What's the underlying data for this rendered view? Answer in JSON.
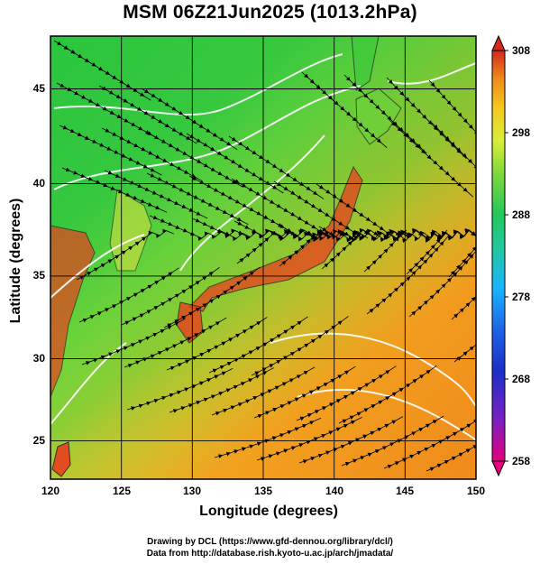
{
  "title": "MSM 06Z21Jun2025 (1013.2hPa)",
  "axes": {
    "xlabel": "Longitude (degrees)",
    "ylabel": "Latitude  (degrees)",
    "xticks": [
      "120",
      "125",
      "130",
      "135",
      "140",
      "145",
      "150"
    ],
    "yticks": [
      "45",
      "40",
      "35",
      "30",
      "25"
    ],
    "xrange": [
      120,
      150
    ],
    "yrange": [
      22.4,
      47.6
    ]
  },
  "colorbar": {
    "ticks": [
      "308",
      "298",
      "288",
      "278",
      "268",
      "258"
    ],
    "range": [
      258,
      308
    ],
    "colors": [
      "#e6007e",
      "#1a2fc8",
      "#19b4ff",
      "#22c87a",
      "#5fd23c",
      "#c8f03c",
      "#f5d21e",
      "#f59614",
      "#eb5a1e",
      "#d2281e"
    ]
  },
  "footer": {
    "line1": "Drawing by DCL (https://www.gfd-dennou.org/library/dcl/)",
    "line2": "Data from http://database.rish.kyoto-u.ac.jp/arch/jmadata/"
  }
}
